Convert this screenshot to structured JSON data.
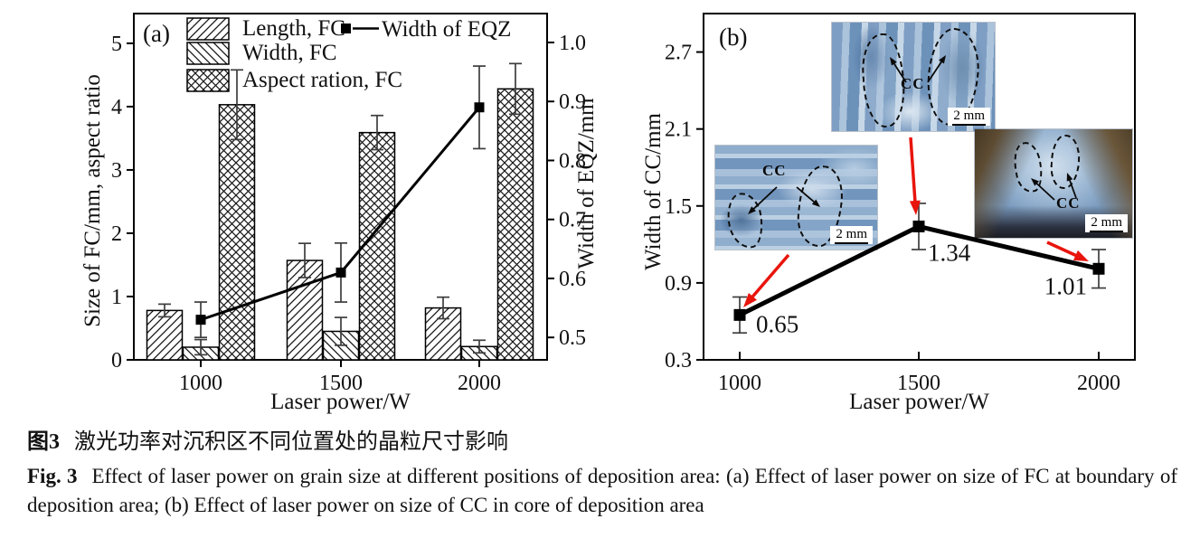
{
  "figure": {
    "caption_zh_label": "图3",
    "caption_zh": "激光功率对沉积区不同位置处的晶粒尺寸影响",
    "caption_en_label": "Fig. 3",
    "caption_en": "Effect of laser power on grain size at different positions of deposition area: (a) Effect of laser power on size of FC at boundary of deposition area; (b) Effect of laser power on size of CC in core of deposition area"
  },
  "chart_data": [
    {
      "id": "a",
      "type": "bar",
      "panel_label": "(a)",
      "title": "",
      "xlabel": "Laser power/W",
      "ylabel_left": "Size of FC/mm, aspect ratio",
      "ylabel_right": "Width of EQZ/mm",
      "categories": [
        "1000",
        "1500",
        "2000"
      ],
      "yticks_left": [
        0,
        1,
        2,
        3,
        4,
        5
      ],
      "yticks_right": [
        0.5,
        0.6,
        0.7,
        0.8,
        0.9,
        1.0
      ],
      "ylim_left": [
        0,
        5.47
      ],
      "ylim_right": [
        0.462,
        1.049
      ],
      "grid": "off",
      "legend_position": "inside-top",
      "series": [
        {
          "name": "Length, FC",
          "type": "bar",
          "axis": "left",
          "hatch": "diag-up",
          "values": [
            0.78,
            1.57,
            0.82
          ],
          "errors": [
            0.1,
            0.27,
            0.17
          ]
        },
        {
          "name": "Width, FC",
          "type": "bar",
          "axis": "left",
          "hatch": "diag-down",
          "values": [
            0.2,
            0.45,
            0.21
          ],
          "errors": [
            0.12,
            0.22,
            0.1
          ]
        },
        {
          "name": "Aspect ration, FC",
          "type": "bar",
          "axis": "left",
          "hatch": "cross",
          "values": [
            4.03,
            3.59,
            4.28
          ],
          "errors": [
            0.55,
            0.27,
            0.4
          ]
        },
        {
          "name": "Width of EQZ",
          "type": "line",
          "axis": "right",
          "marker": "square",
          "color": "#000000",
          "values": [
            0.53,
            0.61,
            0.89
          ],
          "errors": [
            0.03,
            0.05,
            0.07
          ]
        }
      ]
    },
    {
      "id": "b",
      "type": "line",
      "panel_label": "(b)",
      "title": "",
      "xlabel": "Laser power/W",
      "ylabel": "Width of CC/mm",
      "categories": [
        "1000",
        "1500",
        "2000"
      ],
      "yticks": [
        0.3,
        0.9,
        1.5,
        2.1,
        2.7
      ],
      "ylim": [
        0.3,
        3.0
      ],
      "grid": "off",
      "series": [
        {
          "name": "Width of CC",
          "type": "line",
          "marker": "square",
          "color": "#000000",
          "values": [
            0.65,
            1.34,
            1.01
          ],
          "errors": [
            0.14,
            0.18,
            0.15
          ],
          "point_labels": [
            "0.65",
            "1.34",
            "1.01"
          ]
        }
      ],
      "annotation_color": "#e8150d",
      "insets": [
        {
          "name": "micrograph-1000w",
          "cc_label": "CC",
          "scale_label": "2 mm"
        },
        {
          "name": "micrograph-1500w",
          "cc_label": "CC",
          "scale_label": "2 mm"
        },
        {
          "name": "micrograph-2000w",
          "cc_label": "CC",
          "scale_label": "2 mm"
        }
      ]
    }
  ]
}
